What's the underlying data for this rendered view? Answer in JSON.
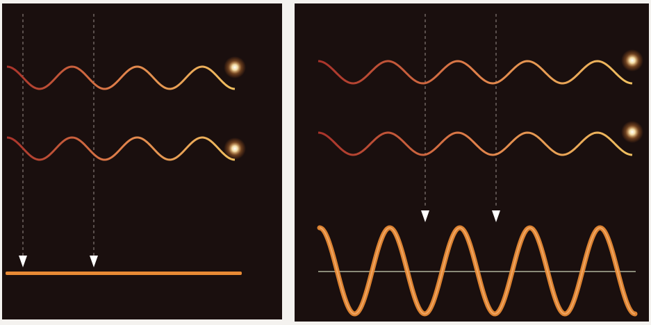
{
  "figure": {
    "panels": [
      {
        "id": "destructive",
        "wave_cycles": 3.5,
        "source_waves": 2,
        "phase_relation": "out-of-phase",
        "result": "flat",
        "arrow_count": 2
      },
      {
        "id": "constructive",
        "wave_cycles": 4.5,
        "source_waves": 2,
        "phase_relation": "in-phase",
        "result": "amplified",
        "arrow_count": 2
      }
    ],
    "colors": {
      "background": "#f4f2ef",
      "panel": "#1a0f0e",
      "wave_red": "#a8322a",
      "wave_gold": "#f0c060",
      "resultant": "#e88a35",
      "baseline": "#8a8a78",
      "arrow": "#ffffff",
      "dashed_line": "#cfc6bd"
    },
    "icons": [
      "light-source-glow-icon",
      "down-arrow-icon"
    ]
  }
}
